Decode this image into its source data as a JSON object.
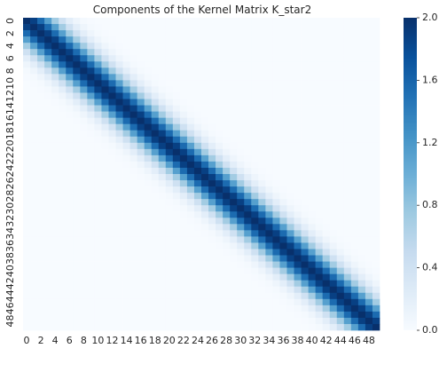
{
  "chart_data": {
    "type": "heatmap",
    "title": "Components of the Kernel Matrix K_star2",
    "xlabel": "",
    "ylabel": "",
    "n_rows": 50,
    "n_cols": 50,
    "x_tick_labels": [
      "0",
      "2",
      "4",
      "6",
      "8",
      "10",
      "12",
      "14",
      "16",
      "18",
      "20",
      "22",
      "24",
      "26",
      "28",
      "30",
      "32",
      "34",
      "36",
      "38",
      "40",
      "42",
      "44",
      "46",
      "48"
    ],
    "y_tick_labels": [
      "0",
      "2",
      "4",
      "6",
      "8",
      "10",
      "12",
      "14",
      "16",
      "18",
      "20",
      "22",
      "24",
      "26",
      "28",
      "30",
      "32",
      "34",
      "36",
      "38",
      "40",
      "42",
      "44",
      "46",
      "48"
    ],
    "kernel": {
      "form": "squared_exponential_of_index_difference",
      "peak_value": 2.0,
      "length_scale_in_index_units": 2.8
    },
    "colorbar": {
      "vmin": 0.0,
      "vmax": 2.0,
      "tick_labels": [
        "0.0",
        "0.4",
        "0.8",
        "1.2",
        "1.6",
        "2.0"
      ],
      "colormap": "Blues",
      "color_stops": [
        "#f7fbff",
        "#deebf7",
        "#c6dbef",
        "#9ecae1",
        "#6baed6",
        "#4292c6",
        "#2171b5",
        "#08519c",
        "#08306b"
      ]
    },
    "grid": false
  }
}
